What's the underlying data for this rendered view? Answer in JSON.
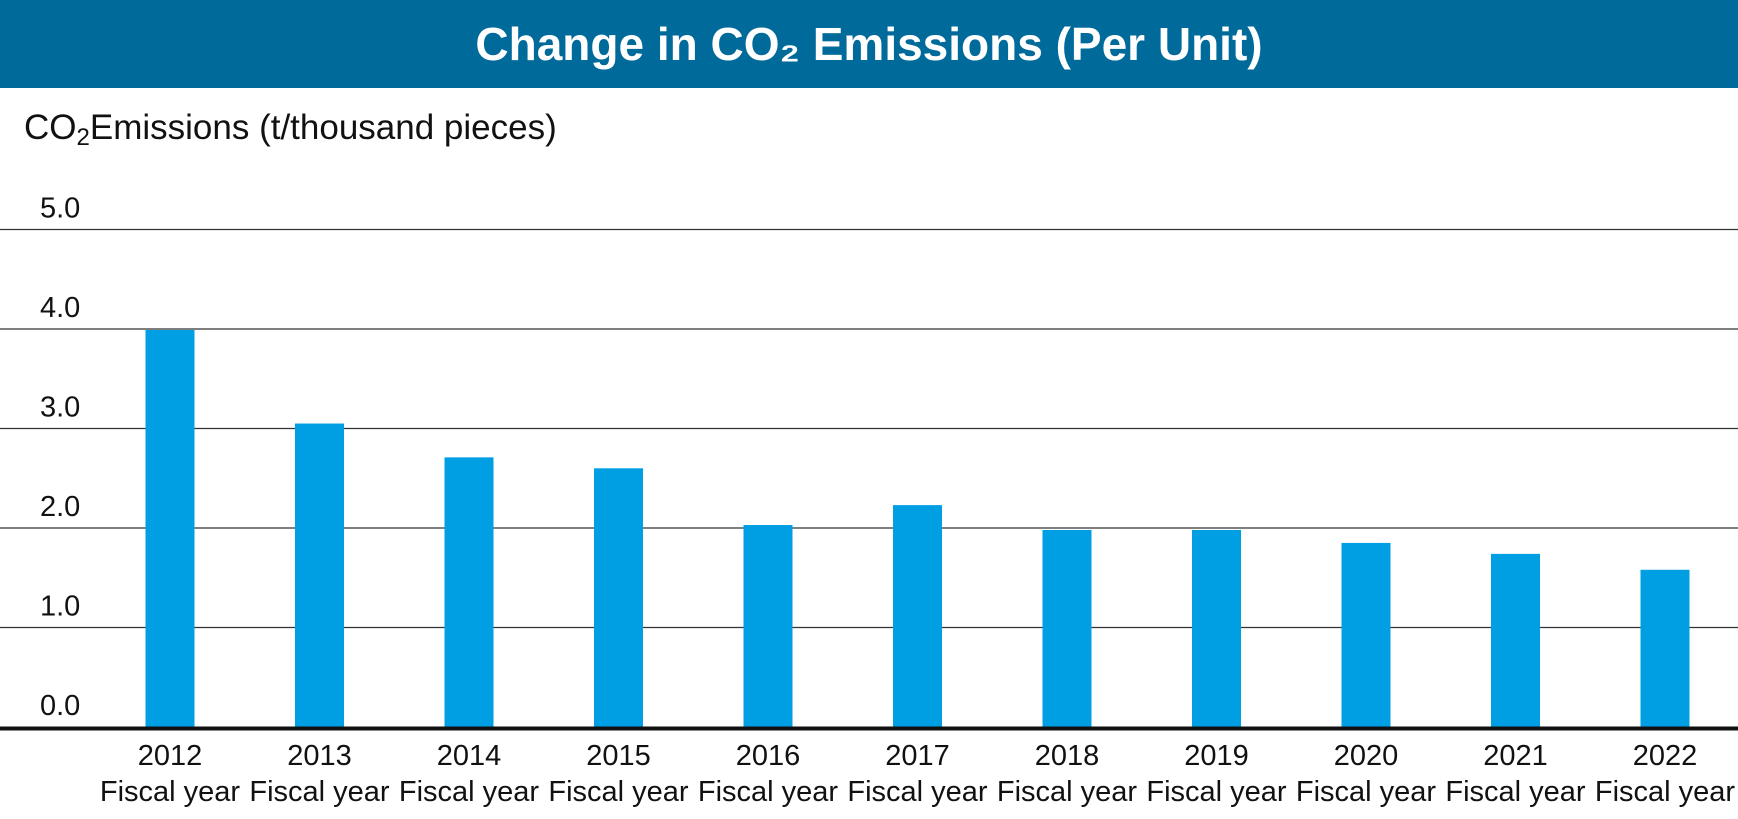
{
  "chart_data": {
    "type": "bar",
    "title": "Change in CO₂ Emissions (Per Unit)",
    "ylabel": {
      "prefix": "CO",
      "subscript": "2",
      "suffix": "Emissions (t/thousand pieces)"
    },
    "xlabel": "",
    "ylim": [
      0,
      5
    ],
    "yticks": [
      "0.0",
      "1.0",
      "2.0",
      "3.0",
      "4.0",
      "5.0"
    ],
    "grid": true,
    "legend": "none",
    "categories": [
      {
        "year": "2012",
        "period": "Fiscal year"
      },
      {
        "year": "2013",
        "period": "Fiscal year"
      },
      {
        "year": "2014",
        "period": "Fiscal year"
      },
      {
        "year": "2015",
        "period": "Fiscal year"
      },
      {
        "year": "2016",
        "period": "Fiscal year"
      },
      {
        "year": "2017",
        "period": "Fiscal year"
      },
      {
        "year": "2018",
        "period": "Fiscal year"
      },
      {
        "year": "2019",
        "period": "Fiscal year"
      },
      {
        "year": "2020",
        "period": "Fiscal year"
      },
      {
        "year": "2021",
        "period": "Fiscal year"
      },
      {
        "year": "2022",
        "period": "Fiscal year"
      }
    ],
    "values": [
      3.99,
      3.05,
      2.71,
      2.6,
      2.03,
      2.23,
      1.98,
      1.98,
      1.85,
      1.74,
      1.58
    ]
  },
  "colors": {
    "title_bar": "#006a9b",
    "title_text": "#ffffff",
    "bar": "#009fe3",
    "gridline": "#333333",
    "baseline": "#111111",
    "text": "#111111"
  }
}
